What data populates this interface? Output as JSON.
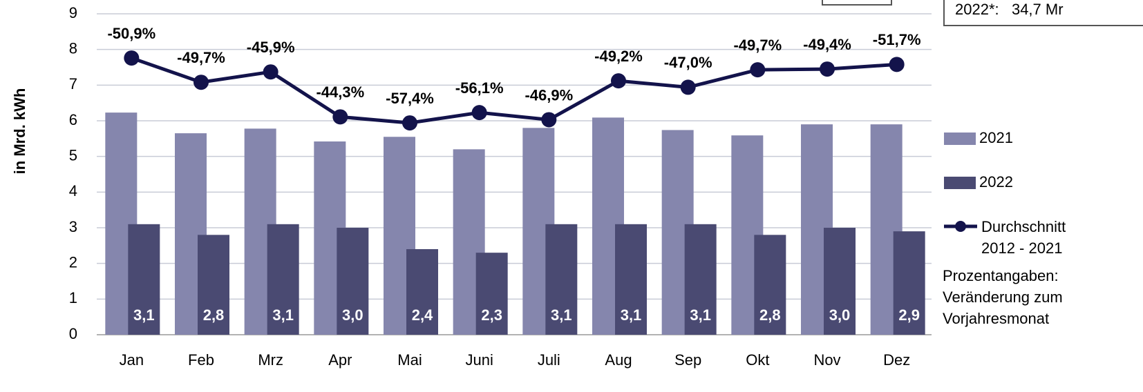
{
  "chart_data": {
    "type": "bar",
    "y_label": "in Mrd. kWh",
    "categories": [
      "Jan",
      "Feb",
      "Mrz",
      "Apr",
      "Mai",
      "Juni",
      "Juli",
      "Aug",
      "Sep",
      "Okt",
      "Nov",
      "Dez"
    ],
    "series": [
      {
        "name": "2021",
        "color": "#8586ad",
        "values": [
          6.23,
          5.65,
          5.78,
          5.42,
          5.55,
          5.2,
          5.8,
          6.09,
          5.74,
          5.59,
          5.9,
          5.9
        ]
      },
      {
        "name": "2022",
        "color": "#4a4a72",
        "values": [
          3.1,
          2.8,
          3.1,
          3.0,
          2.4,
          2.3,
          3.1,
          3.1,
          3.1,
          2.8,
          3.0,
          2.9
        ],
        "value_labels": [
          "3,1",
          "2,8",
          "3,1",
          "3,0",
          "2,4",
          "2,3",
          "3,1",
          "3,1",
          "3,1",
          "2,8",
          "3,0",
          "2,9"
        ]
      },
      {
        "name": "Durchschnitt 2012 - 2021",
        "color": "#13134b",
        "type": "line",
        "values": [
          7.76,
          7.08,
          7.37,
          6.11,
          5.94,
          6.23,
          6.03,
          7.12,
          6.94,
          7.43,
          7.45,
          7.58
        ]
      }
    ],
    "annotations": [
      "-50,9%",
      "-49,7%",
      "-45,9%",
      "-44,3%",
      "-57,4%",
      "-56,1%",
      "-46,9%",
      "-49,2%",
      "-47,0%",
      "-49,7%",
      "-49,4%",
      "-51,7%"
    ],
    "note": "Prozentangaben: Veränderung zum Vorjahresmonat",
    "box_text": "2022*:   34,7 Mr",
    "ylim": [
      0,
      9
    ],
    "yticks": [
      0,
      1,
      2,
      3,
      4,
      5,
      6,
      7,
      8,
      9
    ],
    "grid": true
  }
}
